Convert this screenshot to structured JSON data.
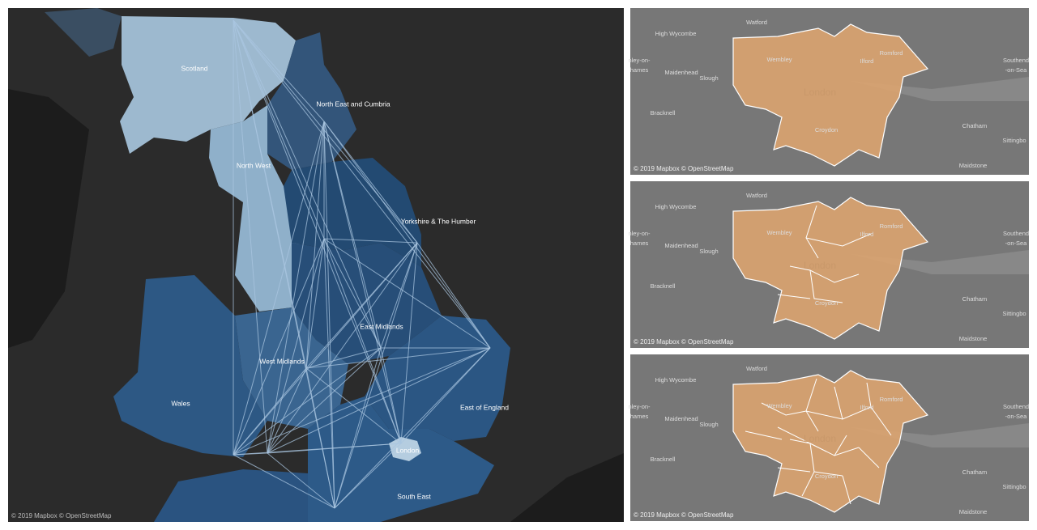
{
  "left_map": {
    "regions": [
      "Scotland",
      "North East and Cumbria",
      "North West",
      "Yorkshire & The Humber",
      "East Midlands",
      "West Midlands",
      "Wales",
      "East of England",
      "London",
      "South East"
    ],
    "attribution": "© 2019 Mapbox © OpenStreetMap"
  },
  "right_maps": {
    "place_labels": [
      "High Wycombe",
      "Watford",
      "Wembley",
      "Romford",
      "Ilford",
      "Southend",
      "-on-Sea",
      "nley-on-",
      "hames",
      "Maidenhead",
      "Slough",
      "London",
      "Bracknell",
      "Croydon",
      "Chatham",
      "Sittingbo",
      "Maidstone"
    ],
    "attribution": "© 2019 Mapbox © OpenStreetMap"
  }
}
